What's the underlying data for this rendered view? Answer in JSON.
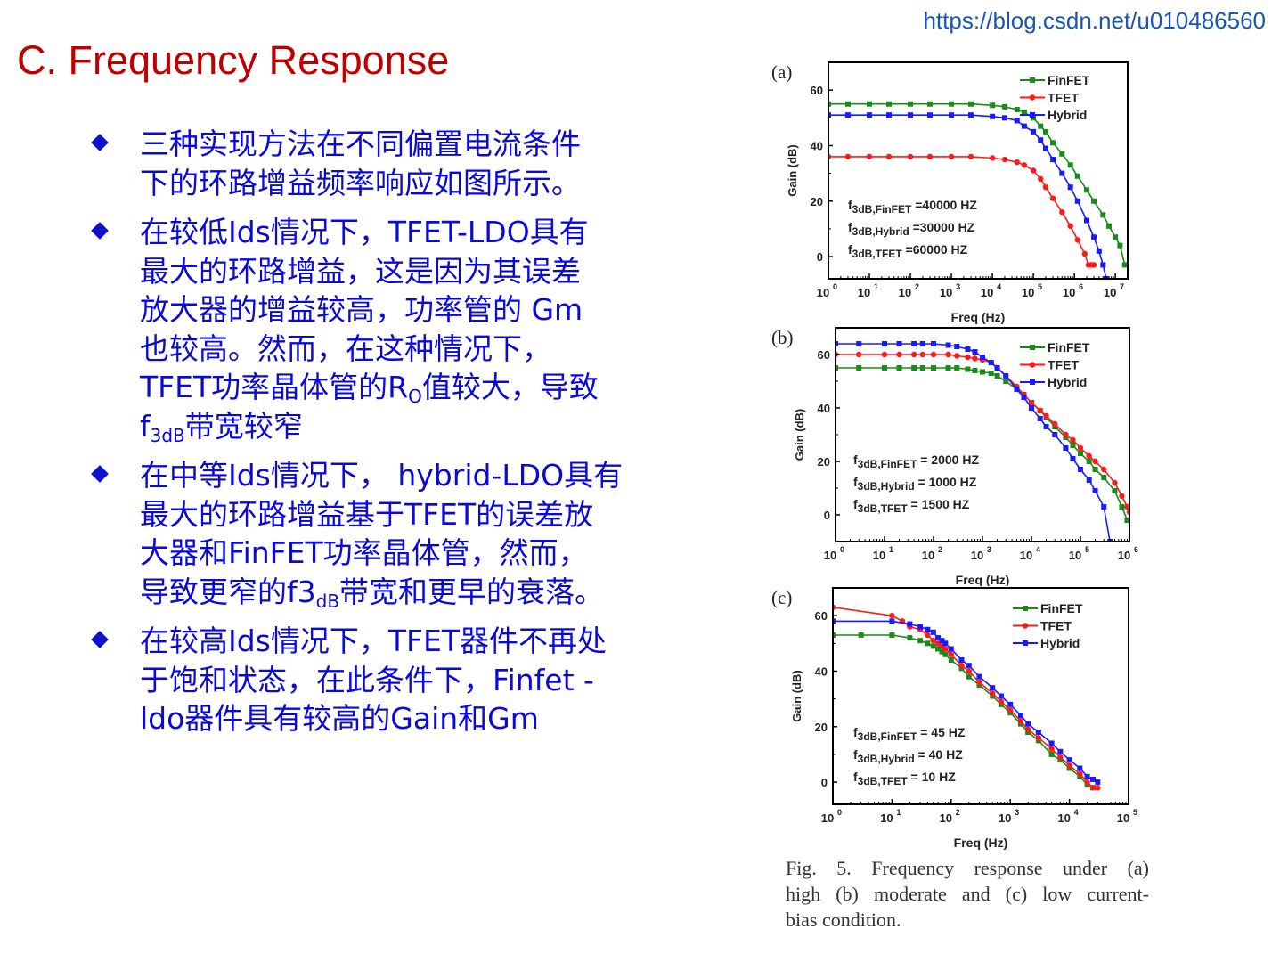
{
  "watermark": "https://blog.csdn.net/u010486560",
  "slide_title": "C. Frequency Response",
  "bullets": [
    {
      "lines": [
        "三种实现方法在不同偏置电流条件",
        "下的环路增益频率响应如图所示。"
      ]
    },
    {
      "lines": [
        "在较低Ids情况下，TFET-LDO具有",
        "最大的环路增益，这是因为其误差",
        "放大器的增益较高，功率管的 Gm",
        "也较高。然而，在这种情况下，"
      ],
      "line5_pre": "TFET功率晶体管的R",
      "line5_sub": "O",
      "line5_post": "值较大，导致",
      "line6_pre": "f",
      "line6_sub": "3dB",
      "line6_post": "带宽较窄"
    },
    {
      "lines": [
        "在中等Ids情况下， hybrid-LDO具有",
        "最大的环路增益基于TFET的误差放",
        "大器和FinFET功率晶体管，然而，"
      ],
      "line4_pre": "导致更窄的f3",
      "line4_sub": "dB",
      "line4_post": "带宽和更早的衰落。"
    },
    {
      "lines": [
        "在较高Ids情况下，TFET器件不再处",
        "于饱和状态，在此条件下，Finfet -",
        "ldo器件具有较高的Gain和Gm"
      ]
    }
  ],
  "caption_lines": [
    "Fig.  5.  Frequency  response  under  (a)",
    "high  (b)  moderate  and  (c)  low  current-",
    "bias condition."
  ],
  "colors": {
    "FinFET": "#1a8a1a",
    "TFET": "#ff1a1a",
    "Hybrid": "#1a1aff"
  },
  "chart_data": [
    {
      "type": "line",
      "panel_label": "(a)",
      "xlabel": "Freq (Hz)",
      "ylabel": "Gain (dB)",
      "x_scale": "log",
      "xlim": [
        1,
        20000000
      ],
      "ylim": [
        -8,
        70
      ],
      "x_ticks_exp": [
        0,
        1,
        2,
        3,
        4,
        5,
        6,
        7
      ],
      "y_ticks": [
        0,
        20,
        40,
        60
      ],
      "legend_position": "top-right",
      "annotations": [
        {
          "pre": "f",
          "sub": "3dB,FinFET",
          "post": " =40000 HZ"
        },
        {
          "pre": "f",
          "sub": "3dB,Hybrid",
          "post": " =30000 HZ"
        },
        {
          "pre": "f",
          "sub": "3dB,TFET",
          "post": " =60000 HZ"
        }
      ],
      "series": [
        {
          "name": "FinFET",
          "x": [
            1,
            3,
            10,
            30,
            100,
            300,
            1000,
            3000,
            10000,
            20000,
            40000,
            60000,
            100000,
            150000,
            200000,
            300000,
            500000,
            800000,
            1200000,
            2000000,
            3000000,
            5000000,
            7000000,
            10000000,
            13000000,
            17000000
          ],
          "y": [
            55,
            55,
            55,
            55,
            55,
            55,
            55,
            55,
            54.5,
            54,
            53,
            52,
            50,
            47,
            45,
            41,
            37,
            33,
            29,
            24,
            20,
            15,
            11,
            7,
            4,
            -3
          ]
        },
        {
          "name": "TFET",
          "x": [
            1,
            3,
            10,
            30,
            100,
            300,
            1000,
            3000,
            10000,
            20000,
            40000,
            60000,
            100000,
            150000,
            200000,
            300000,
            500000,
            800000,
            1200000,
            1800000,
            2200000,
            2600000,
            3000000
          ],
          "y": [
            36,
            36,
            36,
            36,
            36,
            36,
            36,
            36,
            35.5,
            35,
            34,
            33,
            31,
            28,
            25,
            21,
            16,
            11,
            6,
            1,
            -3,
            -3,
            -3
          ]
        },
        {
          "name": "Hybrid",
          "x": [
            1,
            3,
            10,
            30,
            100,
            300,
            1000,
            3000,
            10000,
            20000,
            40000,
            60000,
            100000,
            150000,
            200000,
            300000,
            500000,
            800000,
            1200000,
            2000000,
            3000000,
            4000000,
            5000000,
            6000000
          ],
          "y": [
            51,
            51,
            51,
            51,
            51,
            51,
            51,
            51,
            50.5,
            50,
            49,
            47,
            45,
            42,
            39,
            35,
            30,
            25,
            20,
            13,
            7,
            2,
            -3,
            -8
          ]
        }
      ]
    },
    {
      "type": "line",
      "panel_label": "(b)",
      "xlabel": "Freq (Hz)",
      "ylabel": "Gain (dB)",
      "x_scale": "log",
      "xlim": [
        1,
        1000000
      ],
      "ylim": [
        -10,
        70
      ],
      "x_ticks_exp": [
        0,
        1,
        2,
        3,
        4,
        5,
        6
      ],
      "y_ticks": [
        0,
        20,
        40,
        60
      ],
      "legend_position": "top-right",
      "annotations": [
        {
          "pre": "f",
          "sub": "3dB,FinFET",
          "post": " = 2000 HZ"
        },
        {
          "pre": "f",
          "sub": "3dB,Hybrid",
          "post": " = 1000 HZ"
        },
        {
          "pre": "f",
          "sub": "3dB,TFET",
          "post": " = 1500 HZ"
        }
      ],
      "series": [
        {
          "name": "FinFET",
          "x": [
            1,
            3,
            10,
            20,
            40,
            60,
            100,
            200,
            300,
            500,
            700,
            1000,
            1500,
            2000,
            3000,
            5000,
            7000,
            10000,
            15000,
            20000,
            30000,
            50000,
            70000,
            100000,
            150000,
            200000,
            300000,
            500000,
            700000,
            900000
          ],
          "y": [
            55,
            55,
            55,
            55,
            55,
            55,
            55,
            55,
            55,
            54.5,
            54,
            53.5,
            53,
            52,
            50,
            47,
            45,
            42,
            39,
            36.5,
            33,
            29,
            26,
            23,
            20,
            17,
            14,
            9,
            3,
            -2
          ]
        },
        {
          "name": "TFET",
          "x": [
            1,
            3,
            10,
            20,
            40,
            60,
            100,
            200,
            300,
            500,
            700,
            1000,
            1500,
            2000,
            3000,
            5000,
            7000,
            10000,
            15000,
            20000,
            30000,
            50000,
            70000,
            100000,
            150000,
            200000,
            300000,
            500000,
            700000,
            900000,
            1000000
          ],
          "y": [
            60,
            60,
            60,
            60,
            60,
            60,
            60,
            60,
            59.5,
            59,
            58.5,
            58,
            57,
            55,
            52,
            48,
            45,
            42,
            39,
            37,
            34,
            30,
            28,
            25,
            22,
            20,
            17,
            12,
            7,
            3,
            1
          ]
        },
        {
          "name": "Hybrid",
          "x": [
            1,
            3,
            10,
            20,
            40,
            60,
            100,
            200,
            300,
            500,
            700,
            1000,
            1500,
            2000,
            3000,
            5000,
            7000,
            10000,
            15000,
            20000,
            30000,
            50000,
            70000,
            100000,
            150000,
            200000,
            300000,
            400000
          ],
          "y": [
            64,
            64,
            64,
            64,
            64,
            64,
            64,
            63.5,
            63,
            62,
            61,
            59,
            57,
            55,
            52,
            47,
            44,
            40,
            36,
            33,
            30,
            25,
            21,
            17,
            13,
            9,
            3,
            -10
          ]
        }
      ]
    },
    {
      "type": "line",
      "panel_label": "(c)",
      "xlabel": "Freq (Hz)",
      "ylabel": "Gain (dB)",
      "x_scale": "log",
      "xlim": [
        1,
        100000
      ],
      "ylim": [
        -8,
        70
      ],
      "x_ticks_exp": [
        0,
        1,
        2,
        3,
        4,
        5
      ],
      "y_ticks": [
        0,
        20,
        40,
        60
      ],
      "legend_position": "top-right",
      "annotations": [
        {
          "pre": "f",
          "sub": "3dB,FinFET",
          "post": " = 45 HZ"
        },
        {
          "pre": "f",
          "sub": "3dB,Hybrid",
          "post": " = 40 HZ"
        },
        {
          "pre": "f",
          "sub": "3dB,TFET",
          "post": " = 10 HZ"
        }
      ],
      "series": [
        {
          "name": "FinFET",
          "x": [
            1,
            3,
            10,
            20,
            30,
            40,
            50,
            60,
            70,
            80,
            100,
            150,
            200,
            300,
            500,
            700,
            1000,
            1500,
            2000,
            3000,
            5000,
            7000,
            10000,
            15000,
            20000,
            25000
          ],
          "y": [
            53,
            53,
            53,
            52,
            51,
            50,
            49,
            48,
            47,
            46,
            44,
            41,
            38,
            35,
            31,
            28,
            25,
            21,
            18,
            15,
            10,
            8,
            5,
            2,
            -1,
            -2
          ]
        },
        {
          "name": "TFET",
          "x": [
            1,
            10,
            15,
            20,
            30,
            40,
            50,
            60,
            70,
            80,
            100,
            150,
            200,
            300,
            500,
            700,
            1000,
            1500,
            2000,
            3000,
            5000,
            7000,
            10000,
            15000,
            20000,
            25000,
            30000
          ],
          "y": [
            63,
            60,
            58,
            56,
            55,
            53,
            51,
            50,
            49,
            48,
            46,
            42,
            40,
            36,
            32,
            29,
            26,
            22,
            19,
            16,
            12,
            9,
            6,
            3,
            0,
            -2,
            -2
          ]
        },
        {
          "name": "Hybrid",
          "x": [
            1,
            10,
            20,
            30,
            40,
            50,
            60,
            70,
            80,
            100,
            150,
            200,
            300,
            500,
            700,
            1000,
            1500,
            2000,
            3000,
            5000,
            7000,
            10000,
            15000,
            20000,
            25000,
            30000
          ],
          "y": [
            58,
            58,
            57,
            56,
            55,
            54,
            52,
            51,
            50,
            48,
            44,
            42,
            38,
            34,
            31,
            28,
            24,
            21,
            18,
            14,
            11,
            8,
            5,
            2,
            1,
            0
          ]
        }
      ]
    }
  ]
}
